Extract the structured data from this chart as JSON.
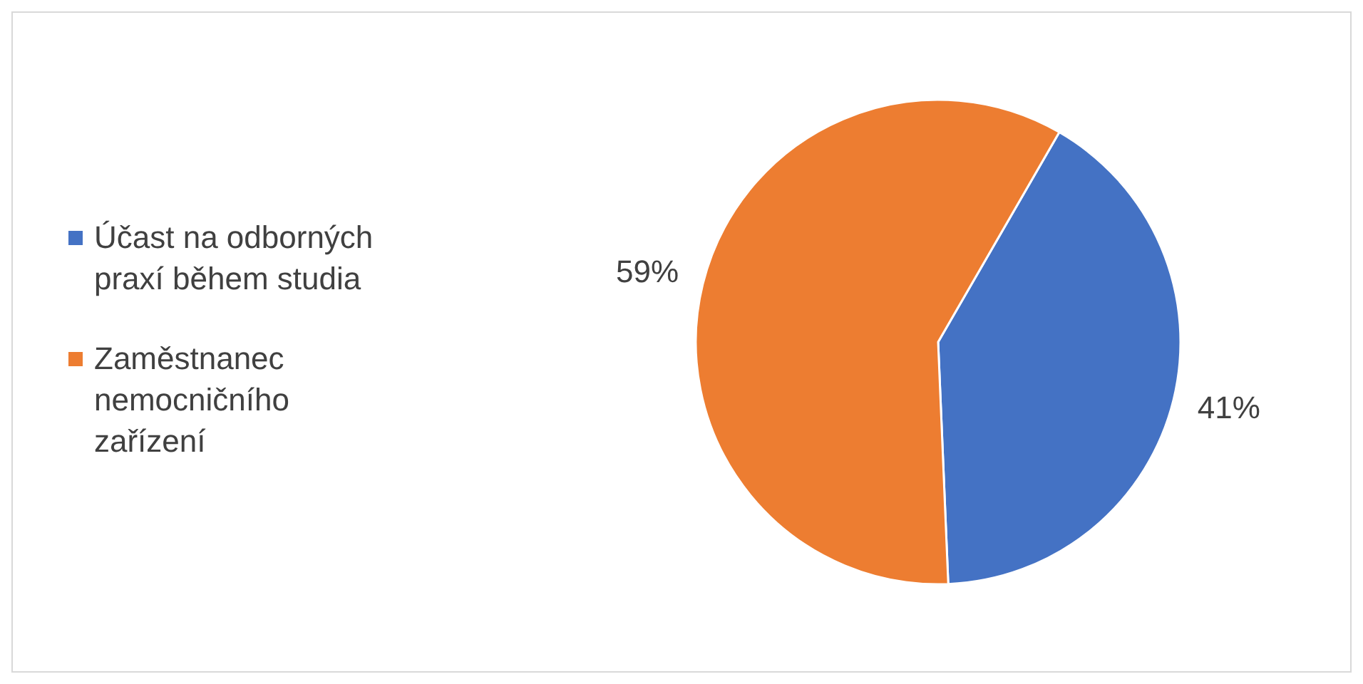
{
  "chart_data": {
    "type": "pie",
    "categories": [
      "Účast na odborných praxí během studia",
      "Zaměstnanec nemocničního zařízení"
    ],
    "values": [
      41,
      59
    ],
    "colors": [
      "#4472c4",
      "#ed7d31"
    ],
    "value_labels": [
      "41%",
      "59%"
    ],
    "legend": "left"
  }
}
